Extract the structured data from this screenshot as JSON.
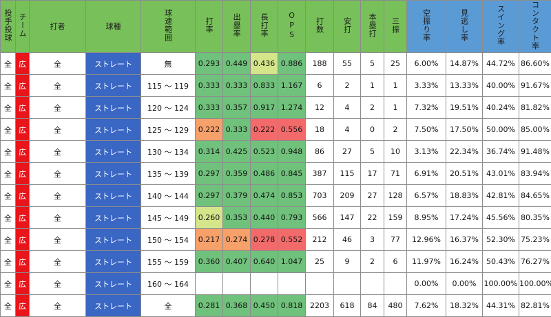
{
  "headers": {
    "pitcher": "投手投球",
    "team": "チーム",
    "batter": "打者",
    "pitch_type": "球種",
    "speed_range": "球速範囲",
    "avg": "打率",
    "obp": "出塁率",
    "slg": "長打率",
    "ops": "OPS",
    "ab": "打数",
    "hits": "安打",
    "hr": "本塁打",
    "so": "三振",
    "whiff": "空振り率",
    "looking": "見逃し率",
    "swing": "スイング率",
    "contact": "コンタクト率"
  },
  "colors": {
    "header_green": "#78c05a",
    "header_blue": "#5b9bd5",
    "team_red": "#e8151b",
    "pitch_blue": "#3a66c4",
    "heat_green": "#70c17b",
    "heat_mid": "#8ccb7e",
    "heat_yellow": "#d4e58a",
    "heat_orange": "#f6a06a",
    "heat_red": "#f26a6a"
  },
  "rows": [
    {
      "pitcher": "全",
      "team": "広",
      "batter": "全",
      "pitch_type": "ストレート",
      "speed_range": "無",
      "avg": "0.293",
      "obp": "0.449",
      "slg": "0.436",
      "ops": "0.886",
      "ab": "188",
      "hits": "55",
      "hr": "5",
      "so": "25",
      "whiff": "6.00%",
      "looking": "14.87%",
      "swing": "44.72%",
      "contact": "86.60%",
      "heat": [
        "green",
        "green",
        "yellow",
        "green"
      ]
    },
    {
      "pitcher": "全",
      "team": "広",
      "batter": "全",
      "pitch_type": "ストレート",
      "speed_range": "115 ～ 119",
      "avg": "0.333",
      "obp": "0.333",
      "slg": "0.833",
      "ops": "1.167",
      "ab": "6",
      "hits": "2",
      "hr": "1",
      "so": "1",
      "whiff": "3.33%",
      "looking": "13.33%",
      "swing": "40.00%",
      "contact": "91.67%",
      "heat": [
        "green",
        "green",
        "green",
        "green"
      ]
    },
    {
      "pitcher": "全",
      "team": "広",
      "batter": "全",
      "pitch_type": "ストレート",
      "speed_range": "120 ～ 124",
      "avg": "0.333",
      "obp": "0.357",
      "slg": "0.917",
      "ops": "1.274",
      "ab": "12",
      "hits": "4",
      "hr": "2",
      "so": "1",
      "whiff": "7.32%",
      "looking": "19.51%",
      "swing": "40.24%",
      "contact": "81.82%",
      "heat": [
        "green",
        "green",
        "green",
        "green"
      ]
    },
    {
      "pitcher": "全",
      "team": "広",
      "batter": "全",
      "pitch_type": "ストレート",
      "speed_range": "125 ～ 129",
      "avg": "0.222",
      "obp": "0.333",
      "slg": "0.222",
      "ops": "0.556",
      "ab": "18",
      "hits": "4",
      "hr": "0",
      "so": "2",
      "whiff": "7.50%",
      "looking": "17.50%",
      "swing": "50.00%",
      "contact": "85.00%",
      "heat": [
        "orange",
        "green",
        "red",
        "red"
      ]
    },
    {
      "pitcher": "全",
      "team": "広",
      "batter": "全",
      "pitch_type": "ストレート",
      "speed_range": "130 ～ 134",
      "avg": "0.314",
      "obp": "0.425",
      "slg": "0.523",
      "ops": "0.948",
      "ab": "86",
      "hits": "27",
      "hr": "5",
      "so": "10",
      "whiff": "3.13%",
      "looking": "22.34%",
      "swing": "36.74%",
      "contact": "91.48%",
      "heat": [
        "green",
        "green",
        "green",
        "green"
      ]
    },
    {
      "pitcher": "全",
      "team": "広",
      "batter": "全",
      "pitch_type": "ストレート",
      "speed_range": "135 ～ 139",
      "avg": "0.297",
      "obp": "0.359",
      "slg": "0.486",
      "ops": "0.845",
      "ab": "387",
      "hits": "115",
      "hr": "17",
      "so": "71",
      "whiff": "6.91%",
      "looking": "20.51%",
      "swing": "43.01%",
      "contact": "83.94%",
      "heat": [
        "green",
        "green",
        "green",
        "green"
      ]
    },
    {
      "pitcher": "全",
      "team": "広",
      "batter": "全",
      "pitch_type": "ストレート",
      "speed_range": "140 ～ 144",
      "avg": "0.297",
      "obp": "0.379",
      "slg": "0.474",
      "ops": "0.853",
      "ab": "703",
      "hits": "209",
      "hr": "27",
      "so": "128",
      "whiff": "6.57%",
      "looking": "18.83%",
      "swing": "42.81%",
      "contact": "84.65%",
      "heat": [
        "green",
        "green",
        "green",
        "green"
      ]
    },
    {
      "pitcher": "全",
      "team": "広",
      "batter": "全",
      "pitch_type": "ストレート",
      "speed_range": "145 ～ 149",
      "avg": "0.260",
      "obp": "0.353",
      "slg": "0.440",
      "ops": "0.793",
      "ab": "566",
      "hits": "147",
      "hr": "22",
      "so": "159",
      "whiff": "8.95%",
      "looking": "17.24%",
      "swing": "45.56%",
      "contact": "80.35%",
      "heat": [
        "yellow",
        "green",
        "green",
        "green"
      ]
    },
    {
      "pitcher": "全",
      "team": "広",
      "batter": "全",
      "pitch_type": "ストレート",
      "speed_range": "150 ～ 154",
      "avg": "0.217",
      "obp": "0.274",
      "slg": "0.278",
      "ops": "0.552",
      "ab": "212",
      "hits": "46",
      "hr": "3",
      "so": "77",
      "whiff": "12.96%",
      "looking": "16.37%",
      "swing": "52.30%",
      "contact": "75.23%",
      "heat": [
        "orange",
        "orange",
        "red",
        "red"
      ]
    },
    {
      "pitcher": "全",
      "team": "広",
      "batter": "全",
      "pitch_type": "ストレート",
      "speed_range": "155 ～ 159",
      "avg": "0.360",
      "obp": "0.407",
      "slg": "0.640",
      "ops": "1.047",
      "ab": "25",
      "hits": "9",
      "hr": "2",
      "so": "6",
      "whiff": "11.97%",
      "looking": "16.24%",
      "swing": "50.43%",
      "contact": "76.27%",
      "heat": [
        "green",
        "green",
        "green",
        "green"
      ]
    },
    {
      "pitcher": "全",
      "team": "広",
      "batter": "全",
      "pitch_type": "ストレート",
      "speed_range": "160 ～ 164",
      "avg": "",
      "obp": "",
      "slg": "",
      "ops": "",
      "ab": "",
      "hits": "",
      "hr": "",
      "so": "",
      "whiff": "0.00%",
      "looking": "0.00%",
      "swing": "100.00%",
      "contact": "100.00%",
      "heat": [
        "none",
        "none",
        "none",
        "none"
      ]
    },
    {
      "pitcher": "全",
      "team": "広",
      "batter": "全",
      "pitch_type": "ストレート",
      "speed_range": "全",
      "avg": "0.281",
      "obp": "0.368",
      "slg": "0.450",
      "ops": "0.818",
      "ab": "2203",
      "hits": "618",
      "hr": "84",
      "so": "480",
      "whiff": "7.62%",
      "looking": "18.32%",
      "swing": "44.31%",
      "contact": "82.81%",
      "heat": [
        "green",
        "green",
        "green",
        "green"
      ]
    }
  ]
}
